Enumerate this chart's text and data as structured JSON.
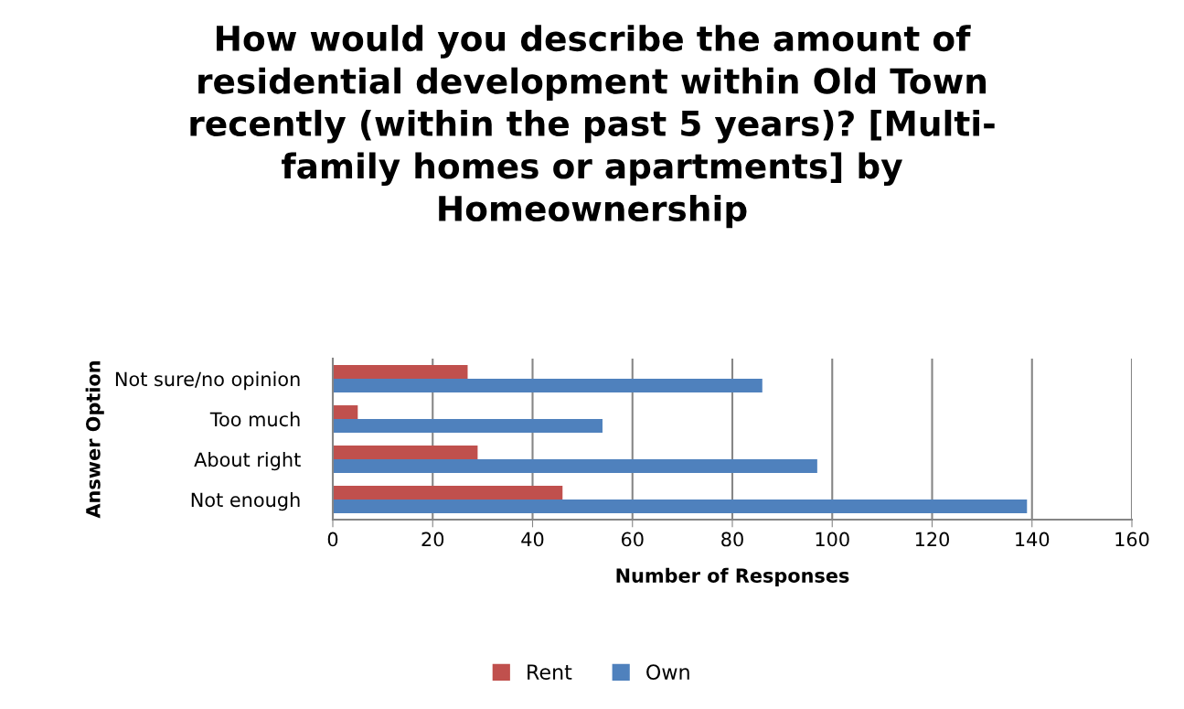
{
  "chart_data": {
    "type": "bar",
    "orientation": "horizontal",
    "title": "How would you describe the amount of\nresidential development within Old Town\nrecently (within the past 5 years)? [Multi-\nfamily homes or apartments] by\nHomeownership",
    "xlabel": "Number of Responses",
    "ylabel": "Answer Option",
    "categories": [
      "Not sure/no opinion",
      "Too much",
      "About right",
      "Not enough"
    ],
    "series": [
      {
        "name": "Rent",
        "color": "#c0504d",
        "values": [
          27,
          5,
          29,
          46
        ]
      },
      {
        "name": "Own",
        "color": "#4f81bd",
        "values": [
          86,
          54,
          97,
          139
        ]
      }
    ],
    "xlim": [
      0,
      160
    ],
    "xticks": [
      0,
      20,
      40,
      60,
      80,
      100,
      120,
      140,
      160
    ],
    "grid": "x",
    "legend": "bottom"
  }
}
